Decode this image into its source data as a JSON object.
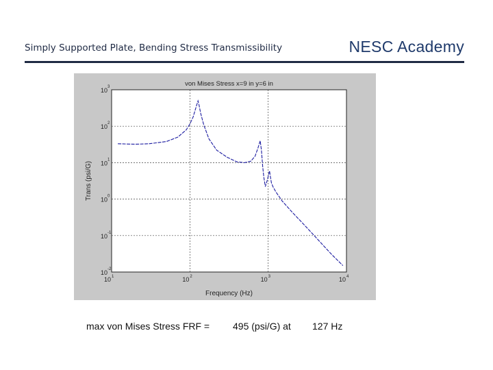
{
  "header": {
    "title": "Simply Supported Plate, Bending Stress Transmissibility",
    "brand": "NESC Academy"
  },
  "footer": {
    "label": "max von Mises Stress FRF =",
    "value": "495 (psi/G) at",
    "frequency": "127 Hz"
  },
  "chart_data": {
    "type": "line",
    "title": "von Mises Stress  x=9 in  y=6 in",
    "xlabel": "Frequency (Hz)",
    "ylabel": "Trans (psi/G)",
    "xscale": "log",
    "yscale": "log",
    "xlim": [
      10,
      10000
    ],
    "ylim": [
      0.01,
      1000
    ],
    "grid": true,
    "x_ticks": [
      {
        "base": "10",
        "exp": "1",
        "value": 10
      },
      {
        "base": "10",
        "exp": "2",
        "value": 100
      },
      {
        "base": "10",
        "exp": "3",
        "value": 1000
      },
      {
        "base": "10",
        "exp": "4",
        "value": 10000
      }
    ],
    "y_ticks": [
      {
        "base": "10",
        "exp": "-2",
        "value": 0.01
      },
      {
        "base": "10",
        "exp": "-1",
        "value": 0.1
      },
      {
        "base": "10",
        "exp": "0",
        "value": 1
      },
      {
        "base": "10",
        "exp": "1",
        "value": 10
      },
      {
        "base": "10",
        "exp": "2",
        "value": 100
      },
      {
        "base": "10",
        "exp": "3",
        "value": 1000
      }
    ],
    "line_color": "#1a1aa0",
    "series": [
      {
        "x": [
          12,
          20,
          30,
          50,
          70,
          90,
          100,
          110,
          118,
          124,
          127,
          131,
          137,
          150,
          175,
          220,
          300,
          400,
          500,
          600,
          680,
          740,
          790,
          820,
          850,
          880,
          920,
          980,
          1040,
          1070,
          1100,
          1150,
          1250,
          1500,
          2000,
          3000,
          4500,
          6500,
          9000
        ],
        "y": [
          33,
          32,
          33,
          38,
          50,
          80,
          115,
          180,
          300,
          420,
          495,
          380,
          230,
          110,
          45,
          22,
          14,
          10.5,
          10,
          11,
          15,
          25,
          40,
          22,
          8,
          4,
          2.2,
          3.5,
          6,
          4,
          2.8,
          2.2,
          1.6,
          0.9,
          0.45,
          0.18,
          0.07,
          0.03,
          0.015
        ]
      }
    ]
  }
}
